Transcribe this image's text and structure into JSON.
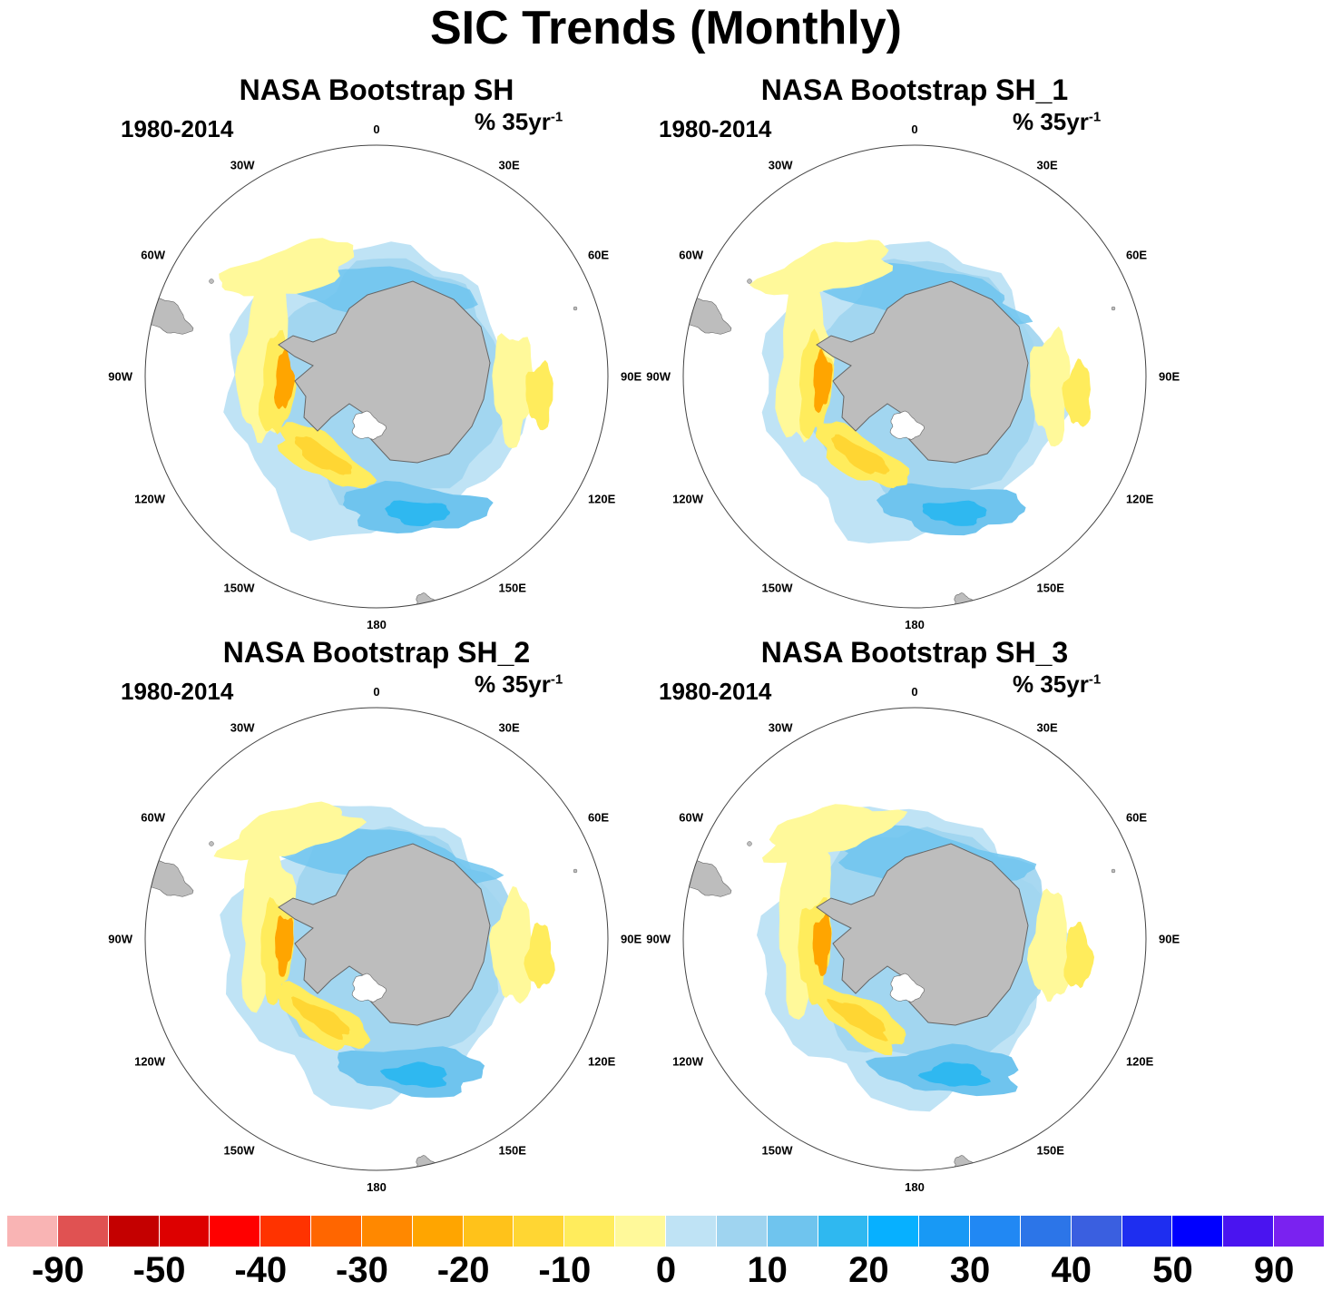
{
  "title": "SIC Trends (Monthly)",
  "panels": [
    {
      "title": "NASA Bootstrap SH",
      "period": "1980-2014",
      "units": "% 35yr",
      "units_exp": "-1"
    },
    {
      "title": "NASA Bootstrap SH_1",
      "period": "1980-2014",
      "units": "% 35yr",
      "units_exp": "-1"
    },
    {
      "title": "NASA Bootstrap SH_2",
      "period": "1980-2014",
      "units": "% 35yr",
      "units_exp": "-1"
    },
    {
      "title": "NASA Bootstrap SH_3",
      "period": "1980-2014",
      "units": "% 35yr",
      "units_exp": "-1"
    }
  ],
  "longitude_labels": [
    "0",
    "30E",
    "60E",
    "90E",
    "120E",
    "150E",
    "180",
    "150W",
    "120W",
    "90W",
    "60W",
    "30W"
  ],
  "colorbar": {
    "colors": [
      "#f9b4b4",
      "#e05252",
      "#c40000",
      "#dd0000",
      "#ff0000",
      "#ff3300",
      "#ff6600",
      "#ff8800",
      "#ffa500",
      "#ffc21a",
      "#ffd633",
      "#ffec5c",
      "#fff99a",
      "#bfe3f5",
      "#9fd4f0",
      "#6fc4ee",
      "#2fb8f0",
      "#07b0ff",
      "#1899f5",
      "#2188f3",
      "#2c75e8",
      "#3a5fe0",
      "#1e2ef0",
      "#0000ff",
      "#4a14f0",
      "#7a22f0"
    ],
    "labels": [
      "-90",
      "-50",
      "-40",
      "-30",
      "-20",
      "-10",
      "0",
      "10",
      "20",
      "30",
      "40",
      "50",
      "90"
    ]
  },
  "map_colors": {
    "land": "#bdbdbd",
    "ocean": "#ffffff"
  }
}
